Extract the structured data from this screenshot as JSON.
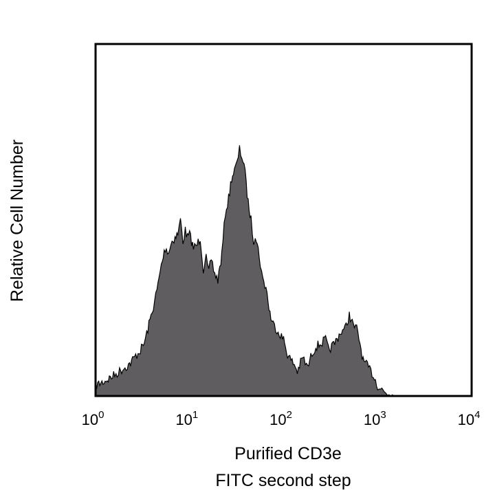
{
  "chart_data": {
    "type": "area",
    "xscale": "log",
    "xlim": [
      1,
      10000
    ],
    "ylim": [
      0,
      1
    ],
    "x_ticks": [
      {
        "base": "10",
        "exp": "0"
      },
      {
        "base": "10",
        "exp": "1"
      },
      {
        "base": "10",
        "exp": "2"
      },
      {
        "base": "10",
        "exp": "3"
      },
      {
        "base": "10",
        "exp": "4"
      }
    ],
    "xlabel_lines": [
      "Purified CD3e",
      "FITC second step"
    ],
    "ylabel": "Relative Cell Number",
    "fill_color": "#5f5d5f",
    "stroke_color": "#000000",
    "grid": false,
    "series": [
      {
        "x": [
          1.0,
          1.2,
          1.4,
          1.6,
          1.8,
          2.0,
          2.3,
          2.6,
          3.0,
          3.3,
          3.6,
          4.0,
          4.5,
          5.0,
          5.5,
          6.0,
          6.5,
          7.0,
          7.5,
          8.0,
          8.5,
          9.0,
          9.5,
          10,
          11,
          12,
          13,
          14,
          15,
          16,
          17,
          18,
          19,
          20,
          22,
          24,
          26,
          28,
          30,
          32,
          34,
          36,
          38,
          40,
          42,
          45,
          48,
          50,
          55,
          60,
          65,
          70,
          75,
          80,
          90,
          100,
          110,
          120,
          130,
          140,
          160,
          180,
          200,
          220,
          250,
          280,
          300,
          350,
          400,
          450,
          500,
          550,
          600,
          650,
          700,
          800,
          900,
          1000,
          1200,
          1400,
          1500,
          1600,
          1800,
          2000
        ],
        "y": [
          0.03,
          0.04,
          0.05,
          0.06,
          0.07,
          0.08,
          0.09,
          0.11,
          0.13,
          0.15,
          0.19,
          0.24,
          0.3,
          0.37,
          0.42,
          0.41,
          0.44,
          0.45,
          0.46,
          0.5,
          0.44,
          0.47,
          0.45,
          0.46,
          0.42,
          0.43,
          0.45,
          0.36,
          0.39,
          0.35,
          0.39,
          0.36,
          0.34,
          0.33,
          0.4,
          0.52,
          0.56,
          0.62,
          0.64,
          0.66,
          0.7,
          0.68,
          0.66,
          0.6,
          0.55,
          0.5,
          0.44,
          0.46,
          0.4,
          0.33,
          0.31,
          0.25,
          0.21,
          0.2,
          0.18,
          0.16,
          0.12,
          0.1,
          0.09,
          0.07,
          0.11,
          0.08,
          0.12,
          0.14,
          0.15,
          0.16,
          0.13,
          0.15,
          0.18,
          0.19,
          0.23,
          0.2,
          0.19,
          0.15,
          0.1,
          0.08,
          0.06,
          0.03,
          0.01,
          0.005,
          0.0,
          0.0,
          0.0,
          0.0
        ]
      }
    ]
  }
}
